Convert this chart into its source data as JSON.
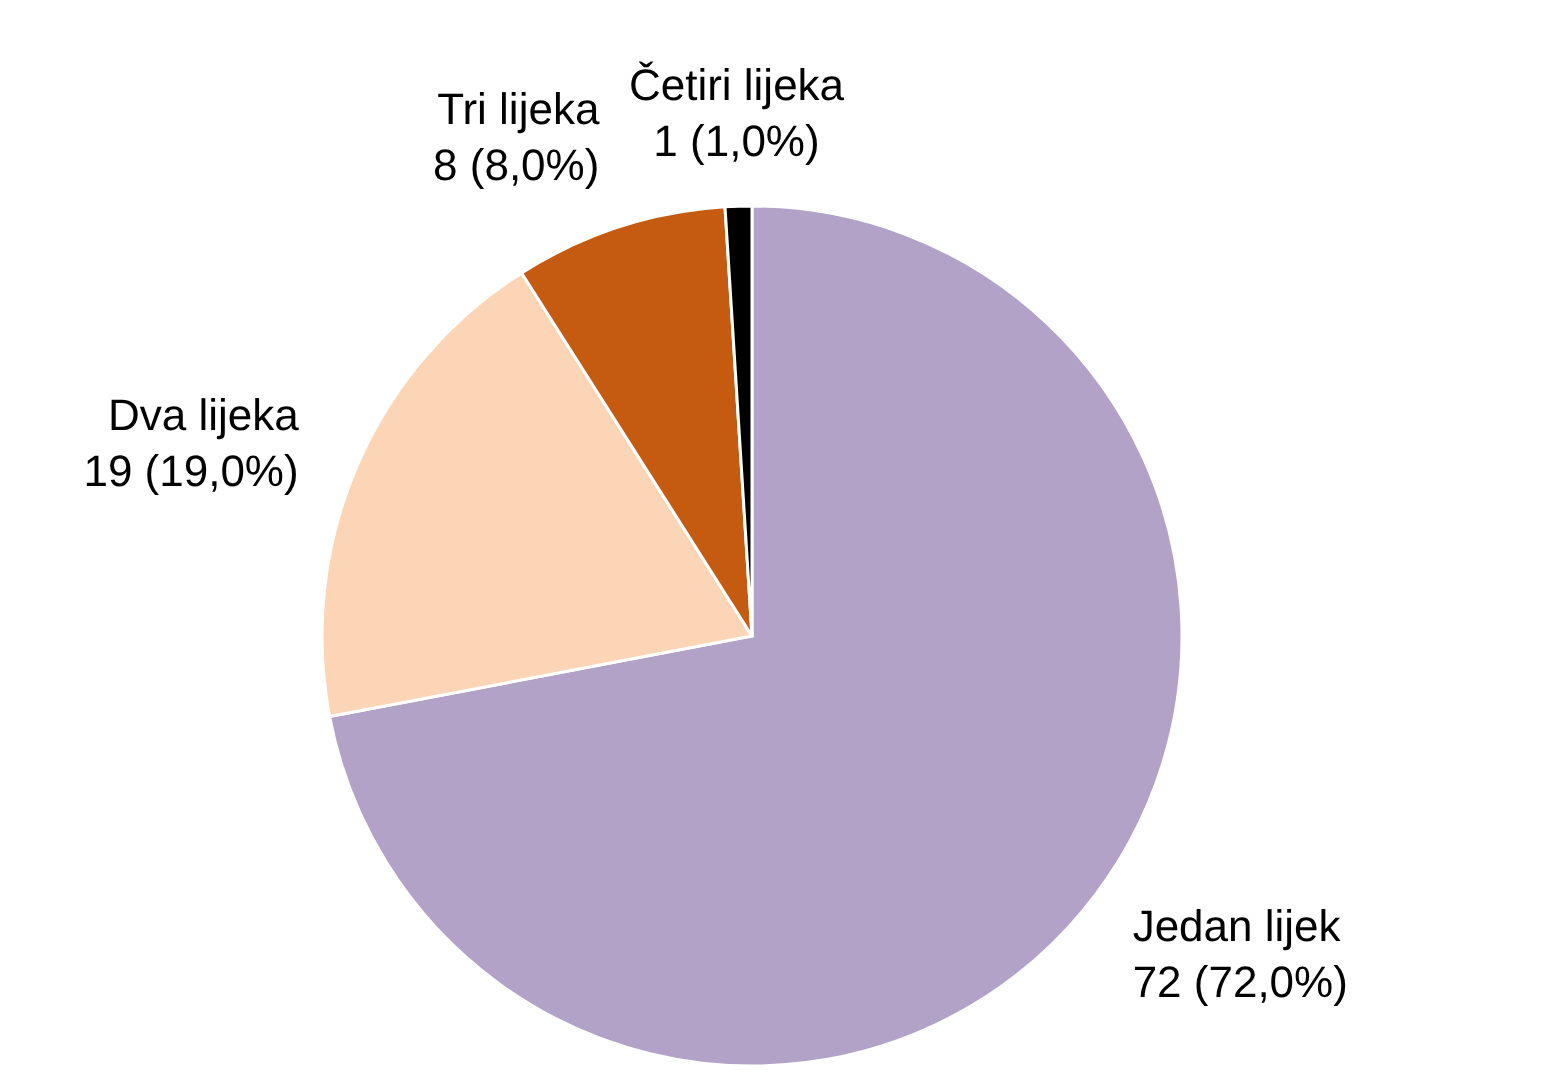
{
  "chart_data": {
    "type": "pie",
    "categories": [
      "Jedan lijek",
      "Dva lijeka",
      "Tri lijeka",
      "Četiri lijeka"
    ],
    "values": [
      72,
      19,
      8,
      1
    ],
    "value_labels": [
      "72 (72,0%)",
      "19 (19,0%)",
      "8 (8,0%)",
      "1 (1,0%)"
    ],
    "colors": [
      "#b3a2c7",
      "#fbd5b5",
      "#c55a11",
      "#000000"
    ]
  }
}
